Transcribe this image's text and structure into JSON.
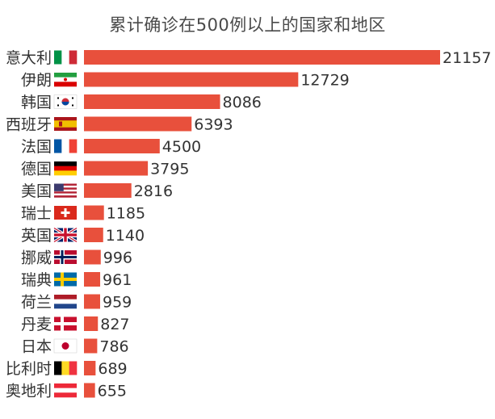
{
  "colors": {
    "bar": "#e8503c",
    "text": "#333333",
    "title": "#4a4a4a",
    "background": "#ffffff"
  },
  "chart_data": {
    "type": "bar",
    "orientation": "horizontal",
    "title": "累计确诊在500例以上的国家和地区",
    "xlabel": "",
    "ylabel": "",
    "xlim": [
      0,
      21157
    ],
    "grid": false,
    "legend": "none",
    "categories": [
      "意大利",
      "伊朗",
      "韩国",
      "西班牙",
      "法国",
      "德国",
      "美国",
      "瑞士",
      "英国",
      "挪威",
      "瑞典",
      "荷兰",
      "丹麦",
      "日本",
      "比利时",
      "奥地利"
    ],
    "flag_icons": [
      "italy-flag-icon",
      "iran-flag-icon",
      "south-korea-flag-icon",
      "spain-flag-icon",
      "france-flag-icon",
      "germany-flag-icon",
      "usa-flag-icon",
      "switzerland-flag-icon",
      "uk-flag-icon",
      "norway-flag-icon",
      "sweden-flag-icon",
      "netherlands-flag-icon",
      "denmark-flag-icon",
      "japan-flag-icon",
      "belgium-flag-icon",
      "austria-flag-icon"
    ],
    "values": [
      21157,
      12729,
      8086,
      6393,
      4500,
      3795,
      2816,
      1185,
      1140,
      996,
      961,
      959,
      827,
      786,
      689,
      655
    ]
  }
}
